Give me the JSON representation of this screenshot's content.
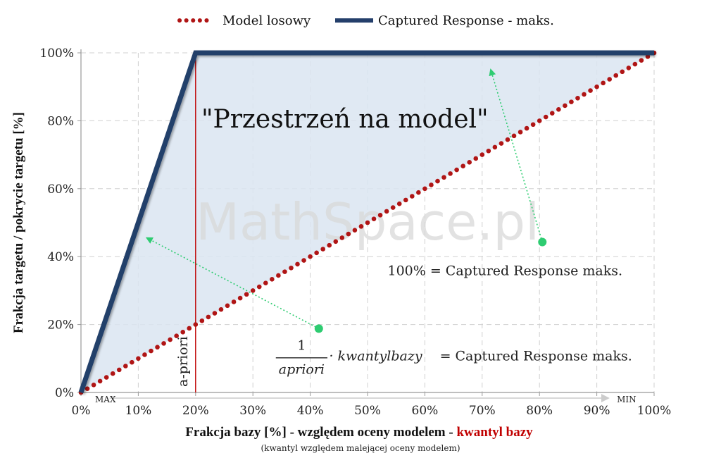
{
  "chart_data": {
    "type": "line",
    "x": [
      0,
      10,
      20,
      30,
      40,
      50,
      60,
      70,
      80,
      90,
      100
    ],
    "series": [
      {
        "name": "Model losowy",
        "values": [
          0,
          10,
          20,
          30,
          40,
          50,
          60,
          70,
          80,
          90,
          100
        ],
        "color": "#b01515",
        "style": "dotted"
      },
      {
        "name": "Captured Response - maks.",
        "values": [
          0,
          50,
          100,
          100,
          100,
          100,
          100,
          100,
          100,
          100,
          100
        ],
        "color": "#243f6b",
        "style": "solid"
      }
    ],
    "xlim": [
      0,
      100
    ],
    "ylim": [
      0,
      100
    ],
    "x_ticks": [
      "0%",
      "10%",
      "20%",
      "30%",
      "40%",
      "50%",
      "60%",
      "70%",
      "80%",
      "90%",
      "100%"
    ],
    "y_ticks": [
      "0%",
      "20%",
      "40%",
      "60%",
      "80%",
      "100%"
    ],
    "xlabel": {
      "part1": "Frakcja bazy [%] - względem oceny modelem - ",
      "part2": "kwantyl bazy",
      "sub": "(kwantyl względem malejącej oceny modelem)"
    },
    "ylabel": "Frakcja targetu / pokrycie targetu [%]",
    "xaxis_ends": {
      "left": "MAX",
      "right": "MIN"
    },
    "apriori_x": 20,
    "apriori_label": "a-priori",
    "region_label": "\"Przestrzeń na model\"",
    "annotations": {
      "line1": "100% = Captured Response maks.",
      "frac_num": "1",
      "frac_den": "apriori",
      "mult": "· kwantylbazy",
      "line2_rhs": "= Captured Response maks."
    },
    "watermark": "MathSpace.pl",
    "grid": true,
    "legend_position": "top",
    "colors": {
      "area": "#dbe5f1",
      "grid": "#d0d0d0",
      "apriori_line": "#c00000",
      "arrows": "#2ecc71",
      "xlabel_highlight": "#c00000"
    }
  }
}
